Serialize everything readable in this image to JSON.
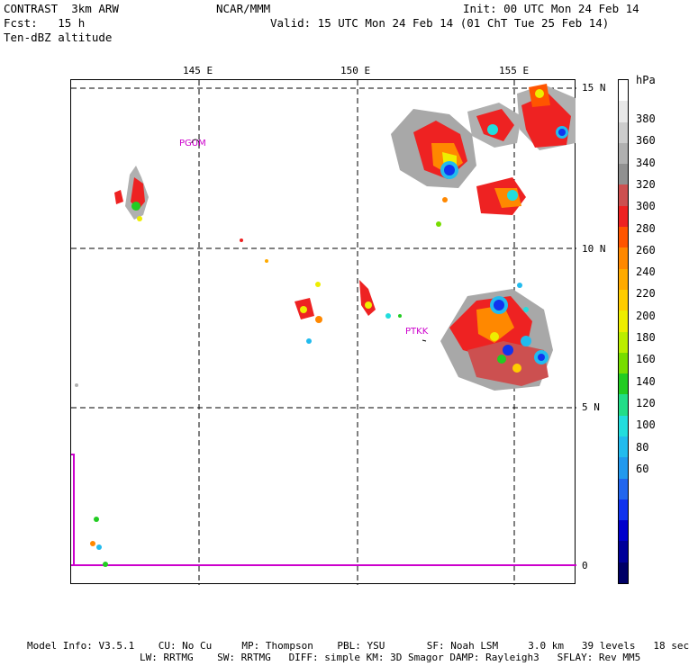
{
  "header": {
    "model": "CONTRAST  3km ARW",
    "fcst": "Fcst:   15 h",
    "field": "Ten-dBZ altitude",
    "center": "NCAR/MMM",
    "init": "Init: 00 UTC Mon 24 Feb 14",
    "valid": "Valid: 15 UTC Mon 24 Feb 14 (01 ChT Tue 25 Feb 14)"
  },
  "map": {
    "lon_labels": [
      "145 E",
      "150 E",
      "155 E"
    ],
    "lat_labels": [
      "15 N",
      "10 N",
      "5 N",
      "0"
    ],
    "stations": [
      "PGUM",
      "PTKK"
    ]
  },
  "colorbar": {
    "unit": "hPa",
    "labels": [
      "380",
      "360",
      "340",
      "320",
      "300",
      "280",
      "260",
      "240",
      "220",
      "200",
      "180",
      "160",
      "140",
      "120",
      "100",
      "80",
      "60"
    ],
    "colors": [
      "#ffffff",
      "#e8e8e8",
      "#cccccc",
      "#b0b0b0",
      "#909090",
      "#cc5050",
      "#ee2222",
      "#ff5500",
      "#ff8800",
      "#ffaa00",
      "#ffcc00",
      "#eeee00",
      "#bbee00",
      "#77dd00",
      "#22cc22",
      "#22dd88",
      "#22dddd",
      "#22bbee",
      "#2299ee",
      "#2266ee",
      "#1133ee",
      "#0000cc",
      "#000099",
      "#000066"
    ]
  },
  "footer": {
    "line1": "Model Info: V3.5.1    CU: No Cu     MP: Thompson    PBL: YSU       SF: Noah LSM     3.0 km   39 levels   18 sec",
    "line2": "LW: RRTMG    SW: RRTMG   DIFF: simple KM: 3D Smagor DAMP: Rayleigh3   SFLAY: Rev MM5"
  }
}
